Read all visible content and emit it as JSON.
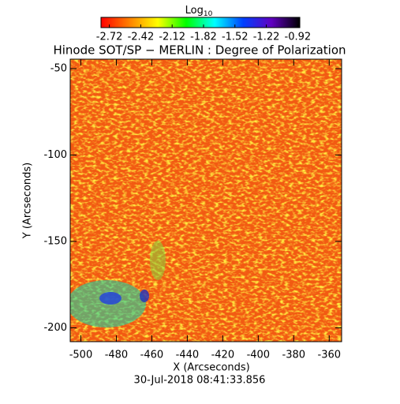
{
  "chart_data": {
    "type": "image",
    "title": "Hinode SOT/SP − MERLIN : Degree of Polarization",
    "colorbar_title": {
      "text": "Log",
      "subscript": "10"
    },
    "colorbar_lim": [
      -2.8,
      -0.9
    ],
    "colorbar_ticks": [
      -2.72,
      -2.42,
      -2.12,
      -1.82,
      -1.52,
      -1.22,
      -0.92
    ],
    "colormap": [
      "#ff0000",
      "#ff8000",
      "#ffff00",
      "#00ff00",
      "#00ffff",
      "#0040ff",
      "#6000c0",
      "#000000"
    ],
    "x_label": "X (Arcseconds)",
    "y_label": "Y (Arcseconds)",
    "xlim": [
      -506,
      -353
    ],
    "xticks": [
      -500,
      -480,
      -460,
      -440,
      -420,
      -400,
      -380,
      -360
    ],
    "ylim": [
      -208,
      -44.5
    ],
    "yticks": [
      -200,
      -150,
      -100,
      -50
    ],
    "footer": "30-Jul-2018 08:41:33.856"
  }
}
